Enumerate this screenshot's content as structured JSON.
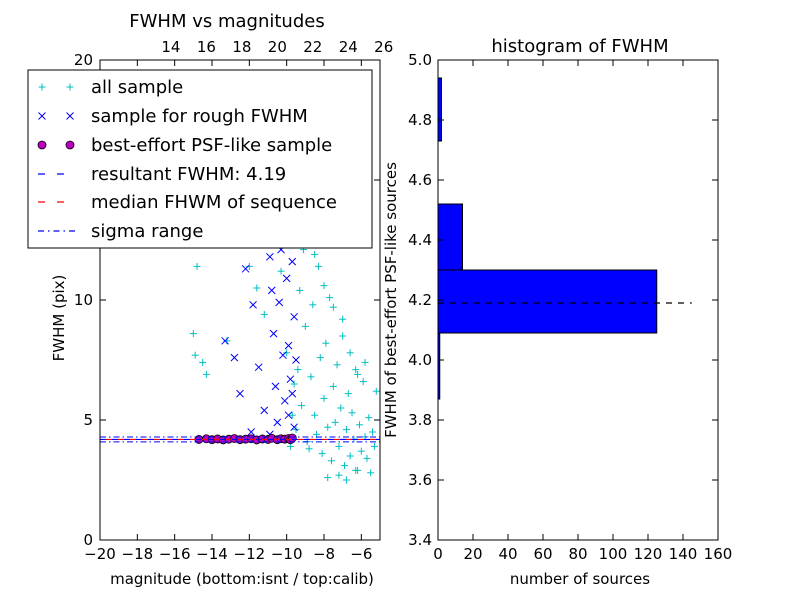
{
  "chart_data": [
    {
      "type": "scatter",
      "title": "FWHM vs magnitudes",
      "xlabel": "magnitude (bottom:isnt / top:calib)",
      "ylabel": "FWHM (pix)",
      "xlim": [
        -20,
        -5
      ],
      "ylim": [
        0,
        20
      ],
      "x_ticks": [
        "−20",
        "−18",
        "−16",
        "−14",
        "−12",
        "−10",
        "−8",
        "−6"
      ],
      "x_tick_values": [
        -20,
        -18,
        -16,
        -14,
        -12,
        -10,
        -8,
        -6
      ],
      "y_ticks": [
        "0",
        "5",
        "10",
        "15",
        "20"
      ],
      "y_tick_values": [
        0,
        5,
        10,
        15,
        20
      ],
      "top_axis": {
        "ticks": [
          "14",
          "16",
          "18",
          "20",
          "22",
          "24",
          "26"
        ],
        "tick_values_bottom_units": [
          -16.2,
          -14.3,
          -12.4,
          -10.5,
          -8.6,
          -6.7,
          -4.8
        ]
      },
      "grid": false,
      "legend_placement": "upper-left",
      "colors": {
        "all": "#00bfbf",
        "rough": "#0000ff",
        "best_face": "#bf00bf",
        "resultant": "#0000ff",
        "median": "#ff0000",
        "sigma": "#0000ff"
      },
      "series": [
        {
          "name": "all sample",
          "marker": "plus",
          "points": [
            [
              -15,
              8.6
            ],
            [
              -14.9,
              7.7
            ],
            [
              -14.8,
              11.4
            ],
            [
              -14.5,
              7.4
            ],
            [
              -14.3,
              6.9
            ],
            [
              -13.2,
              8.3
            ],
            [
              -12.4,
              13.2
            ],
            [
              -12,
              11.4
            ],
            [
              -11.6,
              10.5
            ],
            [
              -11.2,
              9.4
            ],
            [
              -10.6,
              12.6
            ],
            [
              -10.3,
              11.2
            ],
            [
              -10,
              7.8
            ],
            [
              -9.6,
              6.5
            ],
            [
              -9.3,
              10.4
            ],
            [
              -9.2,
              5.6
            ],
            [
              -9.1,
              12.1
            ],
            [
              -9,
              8.9
            ],
            [
              -8.9,
              4.1
            ],
            [
              -8.8,
              3.8
            ],
            [
              -8.7,
              6.8
            ],
            [
              -8.6,
              9.8
            ],
            [
              -8.5,
              5.2
            ],
            [
              -8.4,
              4.4
            ],
            [
              -8.3,
              11.4
            ],
            [
              -8.2,
              7.6
            ],
            [
              -8.1,
              3.6
            ],
            [
              -8,
              5.9
            ],
            [
              -7.9,
              8.2
            ],
            [
              -7.8,
              4.7
            ],
            [
              -7.7,
              10.1
            ],
            [
              -7.6,
              3.3
            ],
            [
              -7.5,
              6.4
            ],
            [
              -7.4,
              4.9
            ],
            [
              -7.3,
              7.3
            ],
            [
              -7.2,
              3.9
            ],
            [
              -7.1,
              5.5
            ],
            [
              -7,
              9.2
            ],
            [
              -6.9,
              3.1
            ],
            [
              -6.8,
              4.6
            ],
            [
              -6.7,
              6.1
            ],
            [
              -6.6,
              3.5
            ],
            [
              -6.5,
              5.3
            ],
            [
              -6.4,
              4.2
            ],
            [
              -6.3,
              7.1
            ],
            [
              -6.2,
              2.9
            ],
            [
              -6.1,
              4.8
            ],
            [
              -6,
              3.7
            ],
            [
              -5.9,
              6.6
            ],
            [
              -5.8,
              4.3
            ],
            [
              -5.7,
              3.4
            ],
            [
              -5.6,
              5.1
            ],
            [
              -5.5,
              2.8
            ],
            [
              -5.4,
              4.5
            ],
            [
              -5.3,
              3.9
            ],
            [
              -5.2,
              6.2
            ],
            [
              -8.8,
              12.9
            ],
            [
              -8.5,
              11.9
            ],
            [
              -8,
              10.6
            ],
            [
              -7.5,
              9.7
            ],
            [
              -7,
              8.5
            ],
            [
              -6.6,
              7.8
            ],
            [
              -6.2,
              6.9
            ],
            [
              -5.8,
              7.4
            ],
            [
              -9.4,
              7.1
            ],
            [
              -9.5,
              4.6
            ],
            [
              -9.7,
              5.2
            ],
            [
              -9.8,
              3.9
            ],
            [
              -7.8,
              2.6
            ],
            [
              -7.2,
              2.7
            ],
            [
              -6.8,
              2.5
            ],
            [
              -6.3,
              2.9
            ]
          ]
        },
        {
          "name": "sample for rough FWHM",
          "marker": "x",
          "points": [
            [
              -13.3,
              8.3
            ],
            [
              -12.5,
              6.1
            ],
            [
              -12.2,
              11.3
            ],
            [
              -11.8,
              9.8
            ],
            [
              -11.5,
              7.2
            ],
            [
              -11.2,
              5.4
            ],
            [
              -11,
              12.7
            ],
            [
              -10.9,
              11.8
            ],
            [
              -10.8,
              10.4
            ],
            [
              -10.7,
              8.6
            ],
            [
              -10.6,
              6.4
            ],
            [
              -10.5,
              4.9
            ],
            [
              -10.4,
              9.9
            ],
            [
              -10.3,
              12.1
            ],
            [
              -10.2,
              7.7
            ],
            [
              -10.1,
              5.8
            ],
            [
              -10,
              10.9
            ],
            [
              -9.9,
              8.1
            ],
            [
              -9.8,
              6.7
            ],
            [
              -9.7,
              11.6
            ],
            [
              -9.6,
              9.3
            ],
            [
              -9.6,
              4.7
            ],
            [
              -9.5,
              7.5
            ],
            [
              -12.8,
              7.6
            ],
            [
              -11.9,
              4.5
            ],
            [
              -10.9,
              4.4
            ],
            [
              -9.9,
              5.2
            ],
            [
              -9.7,
              6.1
            ]
          ]
        },
        {
          "name": "best-effort PSF-like sample",
          "marker": "circle",
          "points": [
            [
              -14.7,
              4.19
            ],
            [
              -14.3,
              4.22
            ],
            [
              -14,
              4.18
            ],
            [
              -13.7,
              4.21
            ],
            [
              -13.4,
              4.17
            ],
            [
              -13.1,
              4.2
            ],
            [
              -12.8,
              4.23
            ],
            [
              -12.5,
              4.18
            ],
            [
              -12.2,
              4.2
            ],
            [
              -11.9,
              4.22
            ],
            [
              -11.6,
              4.17
            ],
            [
              -11.3,
              4.21
            ],
            [
              -11,
              4.19
            ],
            [
              -10.8,
              4.24
            ],
            [
              -10.5,
              4.18
            ],
            [
              -10.3,
              4.22
            ],
            [
              -10.1,
              4.2
            ],
            [
              -9.9,
              4.23
            ],
            [
              -9.8,
              4.18
            ],
            [
              -9.7,
              4.25
            ]
          ]
        }
      ],
      "lines": [
        {
          "name": "resultant FWHM: 4.19",
          "y": 4.19,
          "style": "dashed"
        },
        {
          "name": "median FHWM of sequence",
          "y": 4.19,
          "style": "dashed"
        },
        {
          "name": "sigma range",
          "y_values": [
            4.09,
            4.29
          ],
          "style": "dashdot"
        }
      ]
    },
    {
      "type": "bar",
      "orientation": "horizontal",
      "title": "histogram of FWHM",
      "xlabel": "number of sources",
      "ylabel": "FWHM of best-effort PSF-like sources",
      "xlim": [
        0,
        160
      ],
      "ylim": [
        3.4,
        5.0
      ],
      "x_ticks": [
        "0",
        "20",
        "40",
        "60",
        "80",
        "100",
        "120",
        "140",
        "160"
      ],
      "x_tick_values": [
        0,
        20,
        40,
        60,
        80,
        100,
        120,
        140,
        160
      ],
      "y_ticks": [
        "3.4",
        "3.6",
        "3.8",
        "4.0",
        "4.2",
        "4.4",
        "4.6",
        "4.8",
        "5.0"
      ],
      "y_tick_values": [
        3.4,
        3.6,
        3.8,
        4.0,
        4.2,
        4.4,
        4.6,
        4.8,
        5.0
      ],
      "grid": false,
      "bar_color": "#0000ff",
      "bins": [
        {
          "y0": 3.87,
          "y1": 4.09,
          "count": 1
        },
        {
          "y0": 4.09,
          "y1": 4.3,
          "count": 125
        },
        {
          "y0": 4.3,
          "y1": 4.52,
          "count": 14
        },
        {
          "y0": 4.52,
          "y1": 4.73,
          "count": 0
        },
        {
          "y0": 4.73,
          "y1": 4.94,
          "count": 2
        }
      ],
      "reference_line": {
        "y": 4.19,
        "x_end": 145,
        "style": "dashed"
      }
    }
  ]
}
